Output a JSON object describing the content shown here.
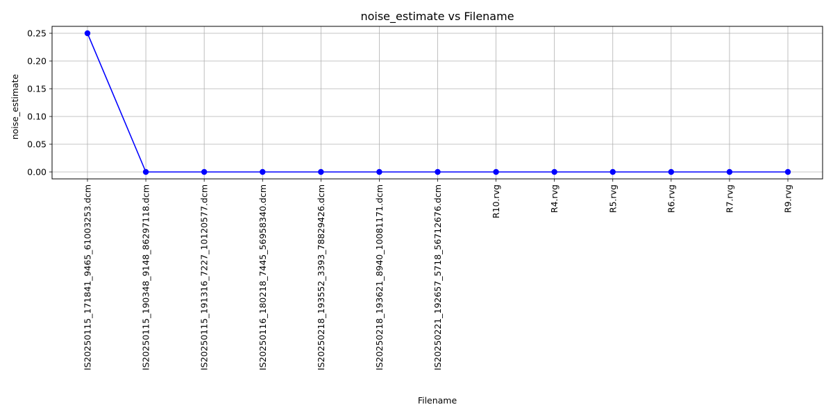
{
  "chart_data": {
    "type": "line",
    "title": "noise_estimate vs Filename",
    "xlabel": "Filename",
    "ylabel": "noise_estimate",
    "categories": [
      "IS20250115_171841_9465_61003253.dcm",
      "IS20250115_190348_9148_86297118.dcm",
      "IS20250115_191316_7227_10120577.dcm",
      "IS20250116_180218_7445_56958340.dcm",
      "IS20250218_193552_3393_78829426.dcm",
      "IS20250218_193621_8940_10081171.dcm",
      "IS20250221_192657_5718_56712676.dcm",
      "R10.rvg",
      "R4.rvg",
      "R5.rvg",
      "R6.rvg",
      "R7.rvg",
      "R9.rvg"
    ],
    "values": [
      0.25,
      0,
      0,
      0,
      0,
      0,
      0,
      0,
      0,
      0,
      0,
      0,
      0
    ],
    "ylim": [
      -0.0125,
      0.2625
    ],
    "yticks": [
      0.0,
      0.05,
      0.1,
      0.15,
      0.2,
      0.25
    ],
    "ytick_labels": [
      "0.00",
      "0.05",
      "0.10",
      "0.15",
      "0.20",
      "0.25"
    ],
    "grid": true,
    "line_color": "#0000ff",
    "marker": "circle"
  }
}
